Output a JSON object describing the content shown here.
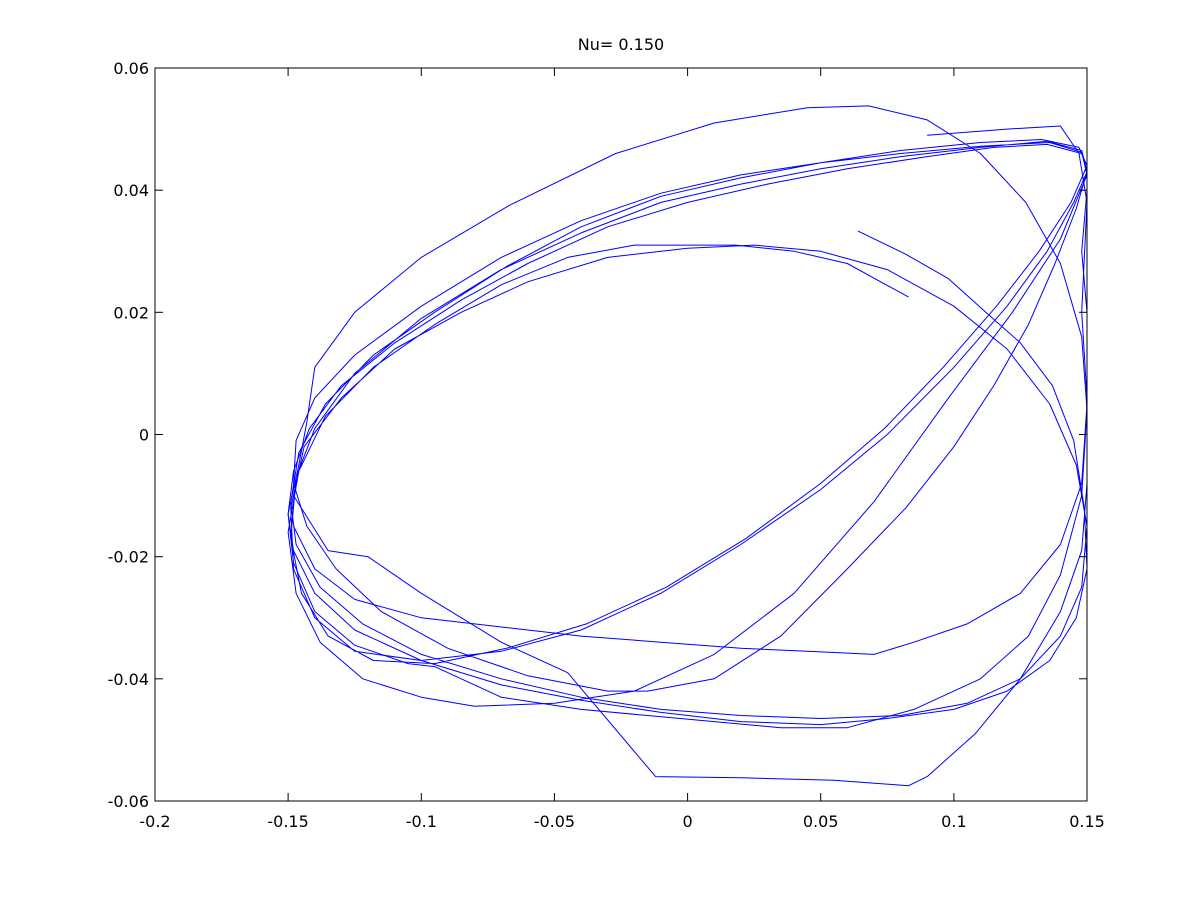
{
  "chart_data": {
    "type": "line",
    "title": "Nu= 0.150",
    "xlabel": "",
    "ylabel": "",
    "xlim": [
      -0.2,
      0.15
    ],
    "ylim": [
      -0.06,
      0.06
    ],
    "xticks": [
      -0.2,
      -0.15,
      -0.1,
      -0.05,
      0,
      0.05,
      0.1,
      0.15
    ],
    "xtick_labels": [
      "-0.2",
      "-0.15",
      "-0.1",
      "-0.05",
      "0",
      "0.05",
      "0.1",
      "0.15"
    ],
    "yticks": [
      -0.06,
      -0.04,
      -0.02,
      0,
      0.02,
      0.04,
      0.06
    ],
    "ytick_labels": [
      "-0.06",
      "-0.04",
      "-0.02",
      "0",
      "0.02",
      "0.04",
      "0.06"
    ],
    "grid": false,
    "line_color": "#0000ff",
    "series": [
      {
        "points": [
          [
            0.064,
            0.0333
          ],
          [
            0.082,
            0.0295
          ],
          [
            0.098,
            0.0255
          ],
          [
            0.112,
            0.02
          ],
          [
            0.125,
            0.015
          ],
          [
            0.137,
            0.008
          ],
          [
            0.145,
            -0.001
          ],
          [
            0.149,
            -0.012
          ],
          [
            0.15,
            -0.022
          ],
          [
            0.146,
            -0.03
          ],
          [
            0.136,
            -0.037
          ],
          [
            0.12,
            -0.042
          ],
          [
            0.1,
            -0.045
          ],
          [
            0.075,
            -0.0465
          ],
          [
            0.05,
            -0.0475
          ],
          [
            0.02,
            -0.047
          ],
          [
            -0.01,
            -0.0455
          ],
          [
            -0.04,
            -0.0435
          ],
          [
            -0.07,
            -0.041
          ],
          [
            -0.1,
            -0.037
          ],
          [
            -0.125,
            -0.032
          ],
          [
            -0.14,
            -0.026
          ],
          [
            -0.148,
            -0.019
          ],
          [
            -0.15,
            -0.013
          ],
          [
            -0.148,
            -0.006
          ],
          [
            -0.142,
            0.001
          ],
          [
            -0.13,
            0.008
          ],
          [
            -0.11,
            0.015
          ],
          [
            -0.085,
            0.022
          ],
          [
            -0.06,
            0.028
          ],
          [
            -0.03,
            0.034
          ],
          [
            0.0,
            0.038
          ],
          [
            0.03,
            0.041
          ],
          [
            0.06,
            0.0435
          ],
          [
            0.09,
            0.0455
          ],
          [
            0.115,
            0.047
          ],
          [
            0.135,
            0.0475
          ],
          [
            0.148,
            0.046
          ],
          [
            0.15,
            0.043
          ],
          [
            0.145,
            0.038
          ],
          [
            0.135,
            0.03
          ],
          [
            0.12,
            0.021
          ],
          [
            0.1,
            0.011
          ],
          [
            0.075,
            0.0
          ],
          [
            0.05,
            -0.009
          ],
          [
            0.02,
            -0.018
          ],
          [
            -0.01,
            -0.026
          ],
          [
            -0.04,
            -0.032
          ],
          [
            -0.07,
            -0.0355
          ],
          [
            -0.1,
            -0.037
          ],
          [
            -0.125,
            -0.0355
          ],
          [
            -0.14,
            -0.03
          ],
          [
            -0.148,
            -0.022
          ],
          [
            -0.149,
            -0.012
          ],
          [
            -0.144,
            -0.002
          ],
          [
            -0.13,
            0.006
          ],
          [
            -0.11,
            0.014
          ],
          [
            -0.085,
            0.02
          ],
          [
            -0.06,
            0.025
          ],
          [
            -0.03,
            0.029
          ],
          [
            0.0,
            0.0305
          ],
          [
            0.025,
            0.031
          ],
          [
            0.05,
            0.03
          ],
          [
            0.075,
            0.027
          ],
          [
            0.1,
            0.021
          ],
          [
            0.12,
            0.014
          ],
          [
            0.136,
            0.005
          ],
          [
            0.146,
            -0.005
          ],
          [
            0.15,
            -0.015
          ],
          [
            0.148,
            -0.025
          ],
          [
            0.14,
            -0.033
          ],
          [
            0.125,
            -0.04
          ],
          [
            0.105,
            -0.044
          ],
          [
            0.08,
            -0.046
          ],
          [
            0.05,
            -0.0465
          ],
          [
            0.02,
            -0.046
          ],
          [
            -0.01,
            -0.045
          ],
          [
            -0.04,
            -0.043
          ],
          [
            -0.07,
            -0.04
          ],
          [
            -0.1,
            -0.036
          ],
          [
            -0.122,
            -0.031
          ],
          [
            -0.138,
            -0.025
          ],
          [
            -0.147,
            -0.018
          ],
          [
            -0.149,
            -0.011
          ],
          [
            -0.146,
            -0.003
          ],
          [
            -0.136,
            0.005
          ],
          [
            -0.118,
            0.013
          ],
          [
            -0.095,
            0.02
          ],
          [
            -0.068,
            0.0275
          ],
          [
            -0.04,
            0.034
          ],
          [
            -0.01,
            0.039
          ],
          [
            0.02,
            0.042
          ],
          [
            0.05,
            0.0445
          ],
          [
            0.08,
            0.0465
          ],
          [
            0.11,
            0.0478
          ],
          [
            0.133,
            0.0483
          ],
          [
            0.147,
            0.047
          ],
          [
            0.15,
            0.044
          ],
          [
            0.144,
            0.038
          ],
          [
            0.132,
            0.03
          ],
          [
            0.116,
            0.021
          ],
          [
            0.096,
            0.011
          ],
          [
            0.074,
            0.001
          ],
          [
            0.05,
            -0.008
          ],
          [
            0.022,
            -0.017
          ],
          [
            -0.008,
            -0.025
          ],
          [
            -0.038,
            -0.031
          ],
          [
            -0.068,
            -0.035
          ],
          [
            -0.095,
            -0.0375
          ],
          [
            -0.118,
            -0.037
          ],
          [
            -0.135,
            -0.033
          ],
          [
            -0.145,
            -0.026
          ],
          [
            -0.149,
            -0.017
          ],
          [
            -0.147,
            -0.007
          ],
          [
            -0.14,
            0.001
          ],
          [
            -0.125,
            0.01
          ],
          [
            -0.1,
            0.019
          ],
          [
            -0.07,
            0.027
          ],
          [
            -0.04,
            0.033
          ],
          [
            -0.01,
            0.038
          ],
          [
            0.02,
            0.041
          ],
          [
            0.05,
            0.0435
          ],
          [
            0.08,
            0.0455
          ],
          [
            0.11,
            0.047
          ],
          [
            0.135,
            0.048
          ],
          [
            0.148,
            0.0465
          ],
          [
            0.15,
            0.043
          ],
          [
            0.146,
            0.037
          ],
          [
            0.138,
            0.028
          ],
          [
            0.128,
            0.018
          ],
          [
            0.115,
            0.008
          ],
          [
            0.1,
            -0.002
          ],
          [
            0.082,
            -0.012
          ],
          [
            0.06,
            -0.022
          ],
          [
            0.035,
            -0.033
          ],
          [
            0.01,
            -0.04
          ],
          [
            -0.015,
            -0.042
          ],
          [
            -0.03,
            -0.042
          ],
          [
            -0.06,
            -0.0395
          ],
          [
            -0.09,
            -0.035
          ],
          [
            -0.115,
            -0.029
          ],
          [
            -0.132,
            -0.022
          ],
          [
            -0.143,
            -0.015
          ],
          [
            -0.148,
            -0.008
          ],
          [
            -0.147,
            -0.001
          ],
          [
            -0.14,
            0.006
          ],
          [
            -0.125,
            0.013
          ],
          [
            -0.1,
            0.021
          ],
          [
            -0.07,
            0.029
          ],
          [
            -0.04,
            0.035
          ],
          [
            -0.01,
            0.0395
          ],
          [
            0.02,
            0.0425
          ],
          [
            0.05,
            0.0445
          ],
          [
            0.08,
            0.046
          ],
          [
            0.11,
            0.0472
          ],
          [
            0.136,
            0.0478
          ],
          [
            0.148,
            0.0462
          ],
          [
            0.15,
            0.0425
          ],
          [
            0.14,
            0.032
          ],
          [
            0.122,
            0.02
          ],
          [
            0.098,
            0.006
          ],
          [
            0.07,
            -0.011
          ],
          [
            0.04,
            -0.026
          ],
          [
            0.01,
            -0.036
          ],
          [
            -0.02,
            -0.042
          ],
          [
            -0.05,
            -0.044
          ],
          [
            -0.08,
            -0.0445
          ],
          [
            -0.1,
            -0.043
          ],
          [
            -0.122,
            -0.04
          ],
          [
            -0.138,
            -0.034
          ],
          [
            -0.147,
            -0.026
          ],
          [
            -0.15,
            -0.016
          ],
          [
            -0.146,
            -0.006
          ],
          [
            -0.136,
            0.003
          ],
          [
            -0.118,
            0.011
          ],
          [
            -0.095,
            0.018
          ],
          [
            -0.07,
            0.0245
          ],
          [
            -0.045,
            0.029
          ],
          [
            -0.02,
            0.031
          ],
          [
            0.0,
            0.031
          ],
          [
            0.018,
            0.031
          ],
          [
            0.04,
            0.03
          ],
          [
            0.06,
            0.028
          ],
          [
            0.083,
            0.0225
          ]
        ]
      },
      {
        "points": [
          [
            -0.15,
            -0.013
          ],
          [
            -0.146,
            -0.005
          ],
          [
            -0.143,
            0.002
          ],
          [
            -0.14,
            0.011
          ],
          [
            -0.125,
            0.02
          ],
          [
            -0.1,
            0.029
          ],
          [
            -0.067,
            0.0375
          ],
          [
            -0.027,
            0.046
          ],
          [
            0.01,
            0.051
          ],
          [
            0.045,
            0.0535
          ],
          [
            0.068,
            0.0538
          ],
          [
            0.09,
            0.0515
          ],
          [
            0.11,
            0.046
          ],
          [
            0.127,
            0.038
          ],
          [
            0.14,
            0.028
          ],
          [
            0.148,
            0.016
          ],
          [
            0.15,
            0.004
          ],
          [
            0.148,
            -0.01
          ],
          [
            0.14,
            -0.023
          ],
          [
            0.128,
            -0.033
          ],
          [
            0.11,
            -0.04
          ],
          [
            0.085,
            -0.045
          ],
          [
            0.06,
            -0.048
          ],
          [
            0.035,
            -0.048
          ],
          [
            0.01,
            -0.047
          ],
          [
            -0.015,
            -0.046
          ],
          [
            -0.04,
            -0.045
          ],
          [
            -0.07,
            -0.043
          ],
          [
            -0.095,
            -0.038
          ],
          [
            -0.105,
            -0.0375
          ],
          [
            -0.125,
            -0.0345
          ],
          [
            -0.14,
            -0.029
          ],
          [
            -0.148,
            -0.021
          ],
          [
            -0.15,
            -0.013
          ]
        ]
      },
      {
        "points": [
          [
            -0.148,
            -0.01
          ],
          [
            -0.135,
            -0.019
          ],
          [
            -0.12,
            -0.02
          ],
          [
            -0.1,
            -0.026
          ],
          [
            -0.07,
            -0.034
          ],
          [
            -0.045,
            -0.039
          ],
          [
            -0.012,
            -0.056
          ],
          [
            0.02,
            -0.0562
          ],
          [
            0.055,
            -0.0566
          ],
          [
            0.083,
            -0.0575
          ],
          [
            0.09,
            -0.056
          ],
          [
            0.108,
            -0.049
          ],
          [
            0.125,
            -0.04
          ],
          [
            0.14,
            -0.029
          ],
          [
            0.148,
            -0.019
          ],
          [
            0.15,
            -0.008
          ],
          [
            0.15,
            0.006
          ],
          [
            0.148,
            0.02
          ],
          [
            0.15,
            0.038
          ],
          [
            0.147,
            0.046
          ],
          [
            0.14,
            0.0505
          ],
          [
            0.12,
            0.05
          ],
          [
            0.09,
            0.049
          ]
        ]
      },
      {
        "points": [
          [
            -0.148,
            -0.015
          ],
          [
            -0.14,
            -0.022
          ],
          [
            -0.125,
            -0.027
          ],
          [
            -0.1,
            -0.03
          ],
          [
            -0.08,
            -0.031
          ],
          [
            -0.06,
            -0.032
          ],
          [
            -0.04,
            -0.033
          ],
          [
            -0.01,
            -0.034
          ],
          [
            0.02,
            -0.035
          ],
          [
            0.045,
            -0.0355
          ],
          [
            0.07,
            -0.036
          ],
          [
            0.085,
            -0.034
          ],
          [
            0.105,
            -0.031
          ],
          [
            0.125,
            -0.026
          ],
          [
            0.14,
            -0.018
          ],
          [
            0.148,
            -0.008
          ],
          [
            0.15,
            0.005
          ],
          [
            0.15,
            0.02
          ],
          [
            0.148,
            0.03
          ],
          [
            0.15,
            0.04
          ]
        ]
      }
    ]
  }
}
